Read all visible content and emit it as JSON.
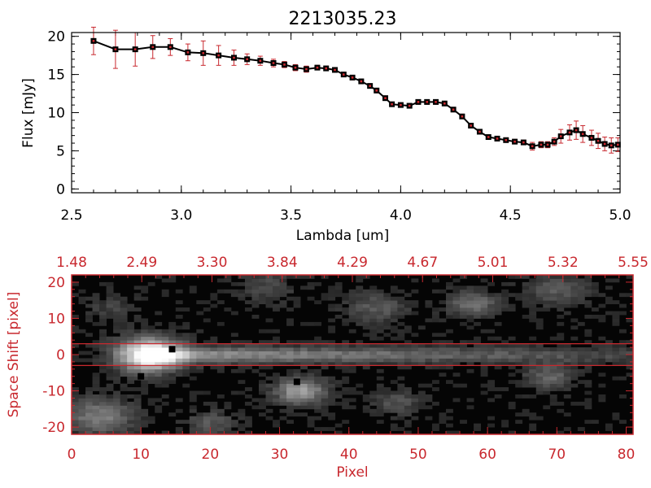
{
  "chart_data": [
    {
      "type": "line",
      "title": "2213035.23",
      "xlabel": "Lambda [um]",
      "ylabel": "Flux [mJy]",
      "xlim": [
        2.5,
        5.0
      ],
      "ylim": [
        -0.5,
        20.5
      ],
      "x_ticks": [
        "2.5",
        "3.0",
        "3.5",
        "4.0",
        "4.5",
        "5.0"
      ],
      "y_ticks": [
        "0",
        "5",
        "10",
        "15",
        "20"
      ],
      "grid": false,
      "colors": {
        "line": "#000000",
        "marker": "#000000",
        "error_bar": "#c8282e"
      },
      "series": [
        {
          "x": [
            2.6,
            2.7,
            2.79,
            2.87,
            2.95,
            3.03,
            3.1,
            3.17,
            3.24,
            3.3,
            3.36,
            3.42,
            3.47,
            3.52,
            3.57,
            3.62,
            3.66,
            3.7,
            3.74,
            3.78,
            3.82,
            3.86,
            3.89,
            3.93,
            3.96,
            4.0,
            4.04,
            4.08,
            4.12,
            4.16,
            4.2,
            4.24,
            4.28,
            4.32,
            4.36,
            4.4,
            4.44,
            4.48,
            4.52,
            4.56,
            4.6,
            4.64,
            4.67,
            4.7,
            4.73,
            4.77,
            4.8,
            4.83,
            4.87,
            4.9,
            4.93,
            4.96,
            4.99
          ],
          "y": [
            19.4,
            18.3,
            18.3,
            18.6,
            18.6,
            17.9,
            17.8,
            17.5,
            17.2,
            17.0,
            16.8,
            16.5,
            16.3,
            15.9,
            15.7,
            15.9,
            15.8,
            15.6,
            15.0,
            14.6,
            14.1,
            13.5,
            12.9,
            11.9,
            11.1,
            11.0,
            10.9,
            11.4,
            11.4,
            11.4,
            11.2,
            10.4,
            9.5,
            8.3,
            7.5,
            6.8,
            6.6,
            6.4,
            6.2,
            6.1,
            5.6,
            5.8,
            5.8,
            6.2,
            6.9,
            7.4,
            7.7,
            7.2,
            6.7,
            6.3,
            5.9,
            5.7,
            5.8
          ],
          "yerr": [
            1.8,
            2.5,
            2.2,
            1.5,
            1.1,
            1.1,
            1.6,
            1.3,
            1.0,
            0.7,
            0.6,
            0.5,
            0.4,
            0.4,
            0.4,
            0.3,
            0.3,
            0.3,
            0.3,
            0.3,
            0.3,
            0.3,
            0.3,
            0.3,
            0.3,
            0.3,
            0.3,
            0.3,
            0.3,
            0.3,
            0.3,
            0.3,
            0.3,
            0.3,
            0.3,
            0.3,
            0.3,
            0.3,
            0.3,
            0.3,
            0.5,
            0.4,
            0.4,
            0.5,
            0.9,
            1.0,
            1.2,
            1.1,
            1.0,
            1.0,
            0.9,
            1.0,
            0.9
          ]
        }
      ]
    },
    {
      "type": "heatmap",
      "xlabel": "Pixel",
      "ylabel": "Space Shift [pixel]",
      "xlim": [
        0,
        81
      ],
      "ylim": [
        -22,
        22
      ],
      "x_ticks": [
        "0",
        "10",
        "20",
        "30",
        "40",
        "50",
        "60",
        "70",
        "80"
      ],
      "y_ticks": [
        "-20",
        "-10",
        "0",
        "10",
        "20"
      ],
      "top_ticks": [
        "1.48",
        "2.49",
        "3.30",
        "3.84",
        "4.29",
        "4.67",
        "5.01",
        "5.32",
        "5.55"
      ],
      "colormap": "grayscale",
      "colors": {
        "axes": "#c8282e",
        "lines": "#c8282e"
      },
      "extraction_lines_y": [
        3,
        -3
      ],
      "trace": {
        "center_y": 0,
        "x_start": 9,
        "x_end": 81
      },
      "marked_pixels": [
        {
          "x": 14.5,
          "y": 1.5
        },
        {
          "x": 10,
          "y": -6
        },
        {
          "x": 32.5,
          "y": -7.5
        }
      ]
    }
  ]
}
